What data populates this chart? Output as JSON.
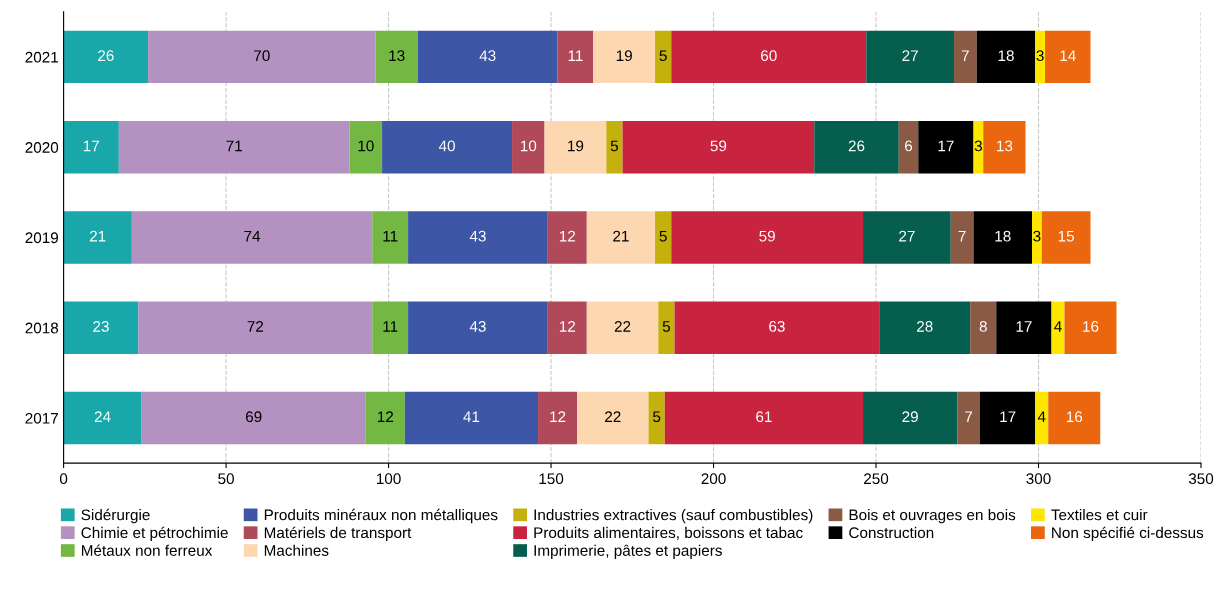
{
  "chart_data": {
    "type": "bar",
    "orientation": "horizontal",
    "stacked": true,
    "data_labels": true,
    "grid": "x",
    "legend": "bottom",
    "categories": [
      "2021",
      "2020",
      "2019",
      "2018",
      "2017"
    ],
    "xlim": [
      0,
      350
    ],
    "xticks": [
      0,
      50,
      100,
      150,
      200,
      250,
      300,
      350
    ],
    "series": [
      {
        "name": "Sidérurgie",
        "color": "#1aa7a9",
        "values": [
          26,
          17,
          21,
          23,
          24
        ]
      },
      {
        "name": "Chimie et pétrochimie",
        "color": "#b391c0",
        "values": [
          70,
          71,
          74,
          72,
          69
        ]
      },
      {
        "name": "Métaux non ferreux",
        "color": "#72b843",
        "values": [
          13,
          10,
          11,
          11,
          12
        ]
      },
      {
        "name": "Produits minéraux non métalliques",
        "color": "#3d57a6",
        "values": [
          43,
          40,
          43,
          43,
          41
        ]
      },
      {
        "name": "Matériels de transport",
        "color": "#b04a5a",
        "values": [
          11,
          10,
          12,
          12,
          12
        ]
      },
      {
        "name": "Machines",
        "color": "#fdd7b0",
        "values": [
          19,
          19,
          21,
          22,
          22
        ]
      },
      {
        "name": "Industries extractives (sauf combustibles)",
        "color": "#c4b10e",
        "values": [
          5,
          5,
          5,
          5,
          5
        ]
      },
      {
        "name": "Produits alimentaires, boissons et tabac",
        "color": "#c8243f",
        "values": [
          60,
          59,
          59,
          63,
          61
        ]
      },
      {
        "name": "Imprimerie, pâtes et papiers",
        "color": "#065e4e",
        "values": [
          27,
          26,
          27,
          28,
          29
        ]
      },
      {
        "name": "Bois et ouvrages en bois",
        "color": "#8a5a44",
        "values": [
          7,
          6,
          7,
          8,
          7
        ]
      },
      {
        "name": "Construction",
        "color": "#000000",
        "values": [
          18,
          17,
          18,
          17,
          17
        ]
      },
      {
        "name": "Textiles et cuir",
        "color": "#ffe600",
        "values": [
          3,
          3,
          3,
          4,
          4
        ]
      },
      {
        "name": "Non spécifié ci-dessus",
        "color": "#ea6710",
        "values": [
          14,
          13,
          15,
          16,
          16
        ]
      }
    ]
  }
}
